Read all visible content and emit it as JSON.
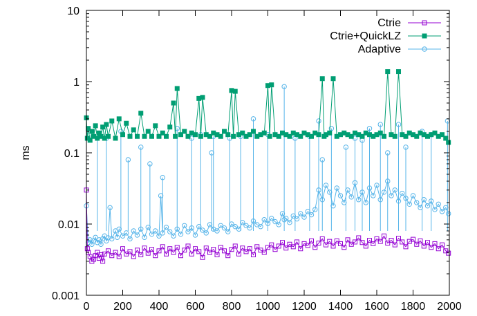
{
  "chart_data": {
    "type": "scatter",
    "title": "",
    "xlabel": "",
    "ylabel": "ms",
    "xlim": [
      0,
      2000
    ],
    "ylim": [
      0.001,
      10
    ],
    "yscale": "log",
    "grid": false,
    "legend_position": "top-right",
    "x_ticks": [
      "0",
      "200",
      "400",
      "600",
      "800",
      "1000",
      "1200",
      "1400",
      "1600",
      "1800",
      "2000"
    ],
    "y_ticks": [
      "0.001",
      "0.01",
      "0.1",
      "1",
      "10"
    ],
    "series": [
      {
        "name": "Ctrie",
        "color": "#9400d3",
        "marker": "open-square",
        "connected": true,
        "x": [
          0,
          5,
          10,
          20,
          30,
          40,
          50,
          60,
          70,
          80,
          90,
          100,
          120,
          140,
          160,
          180,
          200,
          220,
          240,
          260,
          280,
          300,
          320,
          340,
          360,
          380,
          400,
          420,
          440,
          460,
          480,
          500,
          520,
          540,
          560,
          580,
          600,
          620,
          640,
          660,
          680,
          700,
          720,
          740,
          760,
          780,
          800,
          820,
          840,
          860,
          880,
          900,
          920,
          940,
          960,
          980,
          1000,
          1020,
          1040,
          1060,
          1080,
          1100,
          1120,
          1140,
          1160,
          1180,
          1200,
          1220,
          1240,
          1260,
          1280,
          1300,
          1320,
          1340,
          1360,
          1380,
          1400,
          1420,
          1440,
          1460,
          1480,
          1500,
          1520,
          1540,
          1560,
          1580,
          1600,
          1620,
          1640,
          1660,
          1680,
          1700,
          1720,
          1740,
          1760,
          1780,
          1800,
          1820,
          1840,
          1860,
          1880,
          1900,
          1920,
          1940,
          1960,
          1980,
          1995
        ],
        "y": [
          0.03,
          0.0045,
          0.004,
          0.0035,
          0.003,
          0.0032,
          0.0036,
          0.004,
          0.0033,
          0.0037,
          0.003,
          0.0038,
          0.0042,
          0.0036,
          0.004,
          0.0035,
          0.0045,
          0.0038,
          0.0041,
          0.0035,
          0.0043,
          0.0037,
          0.0046,
          0.0039,
          0.0044,
          0.0036,
          0.0042,
          0.0048,
          0.0038,
          0.0045,
          0.004,
          0.0047,
          0.0036,
          0.0043,
          0.0049,
          0.0038,
          0.0045,
          0.0041,
          0.0034,
          0.0046,
          0.004,
          0.0044,
          0.0037,
          0.0047,
          0.0042,
          0.0036,
          0.0044,
          0.0049,
          0.0038,
          0.0046,
          0.0041,
          0.0045,
          0.0037,
          0.0048,
          0.0043,
          0.004,
          0.0047,
          0.0051,
          0.0044,
          0.0049,
          0.0055,
          0.0046,
          0.0052,
          0.0048,
          0.0056,
          0.0045,
          0.0053,
          0.005,
          0.0058,
          0.0047,
          0.0054,
          0.0062,
          0.0051,
          0.0057,
          0.0049,
          0.0058,
          0.0053,
          0.0047,
          0.006,
          0.0052,
          0.0056,
          0.0064,
          0.0055,
          0.0049,
          0.0059,
          0.0053,
          0.0062,
          0.0057,
          0.0068,
          0.0054,
          0.0059,
          0.0051,
          0.0063,
          0.0056,
          0.0048,
          0.0057,
          0.0061,
          0.0052,
          0.0058,
          0.0049,
          0.0055,
          0.0047,
          0.0053,
          0.0045,
          0.0051,
          0.0042,
          0.0039
        ]
      },
      {
        "name": "Ctrie+QuickLZ",
        "color": "#009e73",
        "marker": "filled-square",
        "connected": true,
        "x": [
          0,
          5,
          10,
          20,
          30,
          40,
          50,
          60,
          70,
          80,
          90,
          100,
          110,
          120,
          140,
          160,
          180,
          200,
          220,
          240,
          260,
          280,
          300,
          320,
          340,
          360,
          380,
          400,
          420,
          440,
          460,
          480,
          490,
          500,
          520,
          540,
          560,
          580,
          600,
          620,
          630,
          640,
          660,
          680,
          700,
          720,
          740,
          760,
          780,
          800,
          810,
          820,
          840,
          860,
          880,
          900,
          920,
          940,
          960,
          980,
          1000,
          1010,
          1020,
          1040,
          1060,
          1080,
          1100,
          1120,
          1140,
          1160,
          1180,
          1200,
          1220,
          1240,
          1260,
          1280,
          1300,
          1310,
          1320,
          1340,
          1360,
          1380,
          1400,
          1420,
          1440,
          1460,
          1480,
          1500,
          1520,
          1540,
          1560,
          1580,
          1600,
          1620,
          1640,
          1660,
          1680,
          1700,
          1720,
          1740,
          1760,
          1780,
          1800,
          1820,
          1840,
          1860,
          1880,
          1900,
          1920,
          1940,
          1960,
          1980,
          1995
        ],
        "y": [
          0.31,
          0.16,
          0.22,
          0.15,
          0.2,
          0.17,
          0.24,
          0.16,
          0.19,
          0.17,
          0.23,
          0.16,
          0.25,
          0.17,
          0.28,
          0.16,
          0.3,
          0.18,
          0.26,
          0.17,
          0.21,
          0.17,
          0.36,
          0.17,
          0.2,
          0.17,
          0.24,
          0.17,
          0.19,
          0.17,
          0.23,
          0.5,
          0.17,
          0.8,
          0.18,
          0.2,
          0.17,
          0.19,
          0.18,
          0.58,
          0.17,
          0.6,
          0.18,
          0.17,
          0.19,
          0.18,
          0.17,
          0.2,
          0.18,
          0.75,
          0.17,
          0.73,
          0.18,
          0.19,
          0.17,
          0.18,
          0.2,
          0.17,
          0.18,
          0.19,
          0.88,
          0.17,
          0.9,
          0.18,
          0.17,
          0.19,
          0.18,
          0.17,
          0.19,
          0.18,
          0.17,
          0.19,
          0.18,
          0.17,
          0.19,
          0.18,
          1.1,
          0.17,
          0.18,
          0.19,
          1.1,
          0.17,
          0.18,
          0.19,
          0.18,
          0.17,
          0.19,
          0.18,
          0.17,
          0.19,
          0.18,
          0.17,
          0.18,
          0.19,
          0.17,
          1.38,
          0.18,
          0.17,
          1.38,
          0.18,
          0.17,
          0.19,
          0.18,
          0.17,
          0.19,
          0.18,
          0.17,
          0.18,
          0.19,
          0.17,
          0.18,
          0.16,
          0.14
        ]
      },
      {
        "name": "Adaptive",
        "color": "#56b4e9",
        "marker": "open-circle",
        "connected": true,
        "x": [
          0,
          10,
          20,
          30,
          40,
          50,
          60,
          70,
          80,
          90,
          100,
          110,
          120,
          130,
          140,
          160,
          170,
          180,
          200,
          220,
          240,
          260,
          280,
          300,
          320,
          340,
          360,
          380,
          400,
          410,
          420,
          440,
          460,
          480,
          500,
          520,
          540,
          560,
          580,
          600,
          620,
          640,
          660,
          680,
          700,
          720,
          740,
          760,
          780,
          800,
          820,
          840,
          860,
          880,
          900,
          920,
          940,
          960,
          980,
          1000,
          1020,
          1040,
          1060,
          1080,
          1090,
          1100,
          1120,
          1140,
          1160,
          1180,
          1200,
          1220,
          1240,
          1260,
          1280,
          1300,
          1320,
          1340,
          1360,
          1380,
          1400,
          1420,
          1440,
          1460,
          1480,
          1500,
          1520,
          1540,
          1560,
          1580,
          1600,
          1620,
          1640,
          1660,
          1680,
          1700,
          1720,
          1740,
          1760,
          1780,
          1800,
          1820,
          1840,
          1860,
          1880,
          1900,
          1920,
          1940,
          1960,
          1980,
          1995
        ],
        "y": [
          0.018,
          0.0055,
          0.006,
          0.0052,
          0.0058,
          0.0065,
          0.0055,
          0.006,
          0.0052,
          0.0062,
          0.0068,
          0.0058,
          0.0064,
          0.017,
          0.0062,
          0.008,
          0.0065,
          0.0085,
          0.0068,
          0.0075,
          0.0062,
          0.008,
          0.007,
          0.0085,
          0.0065,
          0.009,
          0.0072,
          0.008,
          0.0068,
          0.025,
          0.0075,
          0.009,
          0.0078,
          0.0068,
          0.0085,
          0.0072,
          0.0095,
          0.0078,
          0.0088,
          0.007,
          0.0092,
          0.0082,
          0.0075,
          0.0098,
          0.0085,
          0.008,
          0.0095,
          0.0088,
          0.0078,
          0.01,
          0.0092,
          0.0085,
          0.0105,
          0.0095,
          0.0088,
          0.011,
          0.0098,
          0.0092,
          0.0115,
          0.0102,
          0.012,
          0.0108,
          0.0098,
          0.014,
          0.0115,
          0.012,
          0.0105,
          0.013,
          0.0118,
          0.014,
          0.0125,
          0.015,
          0.0135,
          0.016,
          0.03,
          0.022,
          0.035,
          0.028,
          0.018,
          0.032,
          0.025,
          0.02,
          0.03,
          0.024,
          0.038,
          0.022,
          0.028,
          0.02,
          0.032,
          0.025,
          0.035,
          0.022,
          0.028,
          0.04,
          0.025,
          0.03,
          0.021,
          0.027,
          0.023,
          0.019,
          0.025,
          0.02,
          0.017,
          0.022,
          0.018,
          0.021,
          0.016,
          0.019,
          0.015,
          0.017,
          0.014
        ],
        "spikes": [
          [
            60,
            0.16
          ],
          [
            110,
            0.16
          ],
          [
            190,
            0.2
          ],
          [
            230,
            0.08
          ],
          [
            300,
            0.12
          ],
          [
            350,
            0.07
          ],
          [
            420,
            0.045
          ],
          [
            500,
            0.22
          ],
          [
            580,
            0.16
          ],
          [
            630,
            0.18
          ],
          [
            690,
            0.1
          ],
          [
            700,
            0.17
          ],
          [
            790,
            0.16
          ],
          [
            850,
            0.17
          ],
          [
            920,
            0.3
          ],
          [
            1000,
            0.18
          ],
          [
            1090,
            0.85
          ],
          [
            1150,
            0.16
          ],
          [
            1230,
            0.17
          ],
          [
            1280,
            0.28
          ],
          [
            1300,
            0.08
          ],
          [
            1350,
            0.22
          ],
          [
            1430,
            0.12
          ],
          [
            1480,
            0.16
          ],
          [
            1520,
            0.15
          ],
          [
            1560,
            0.22
          ],
          [
            1620,
            0.25
          ],
          [
            1660,
            0.1
          ],
          [
            1720,
            0.25
          ],
          [
            1760,
            0.12
          ],
          [
            1850,
            0.2
          ],
          [
            1900,
            0.18
          ],
          [
            1990,
            0.28
          ]
        ]
      }
    ]
  }
}
